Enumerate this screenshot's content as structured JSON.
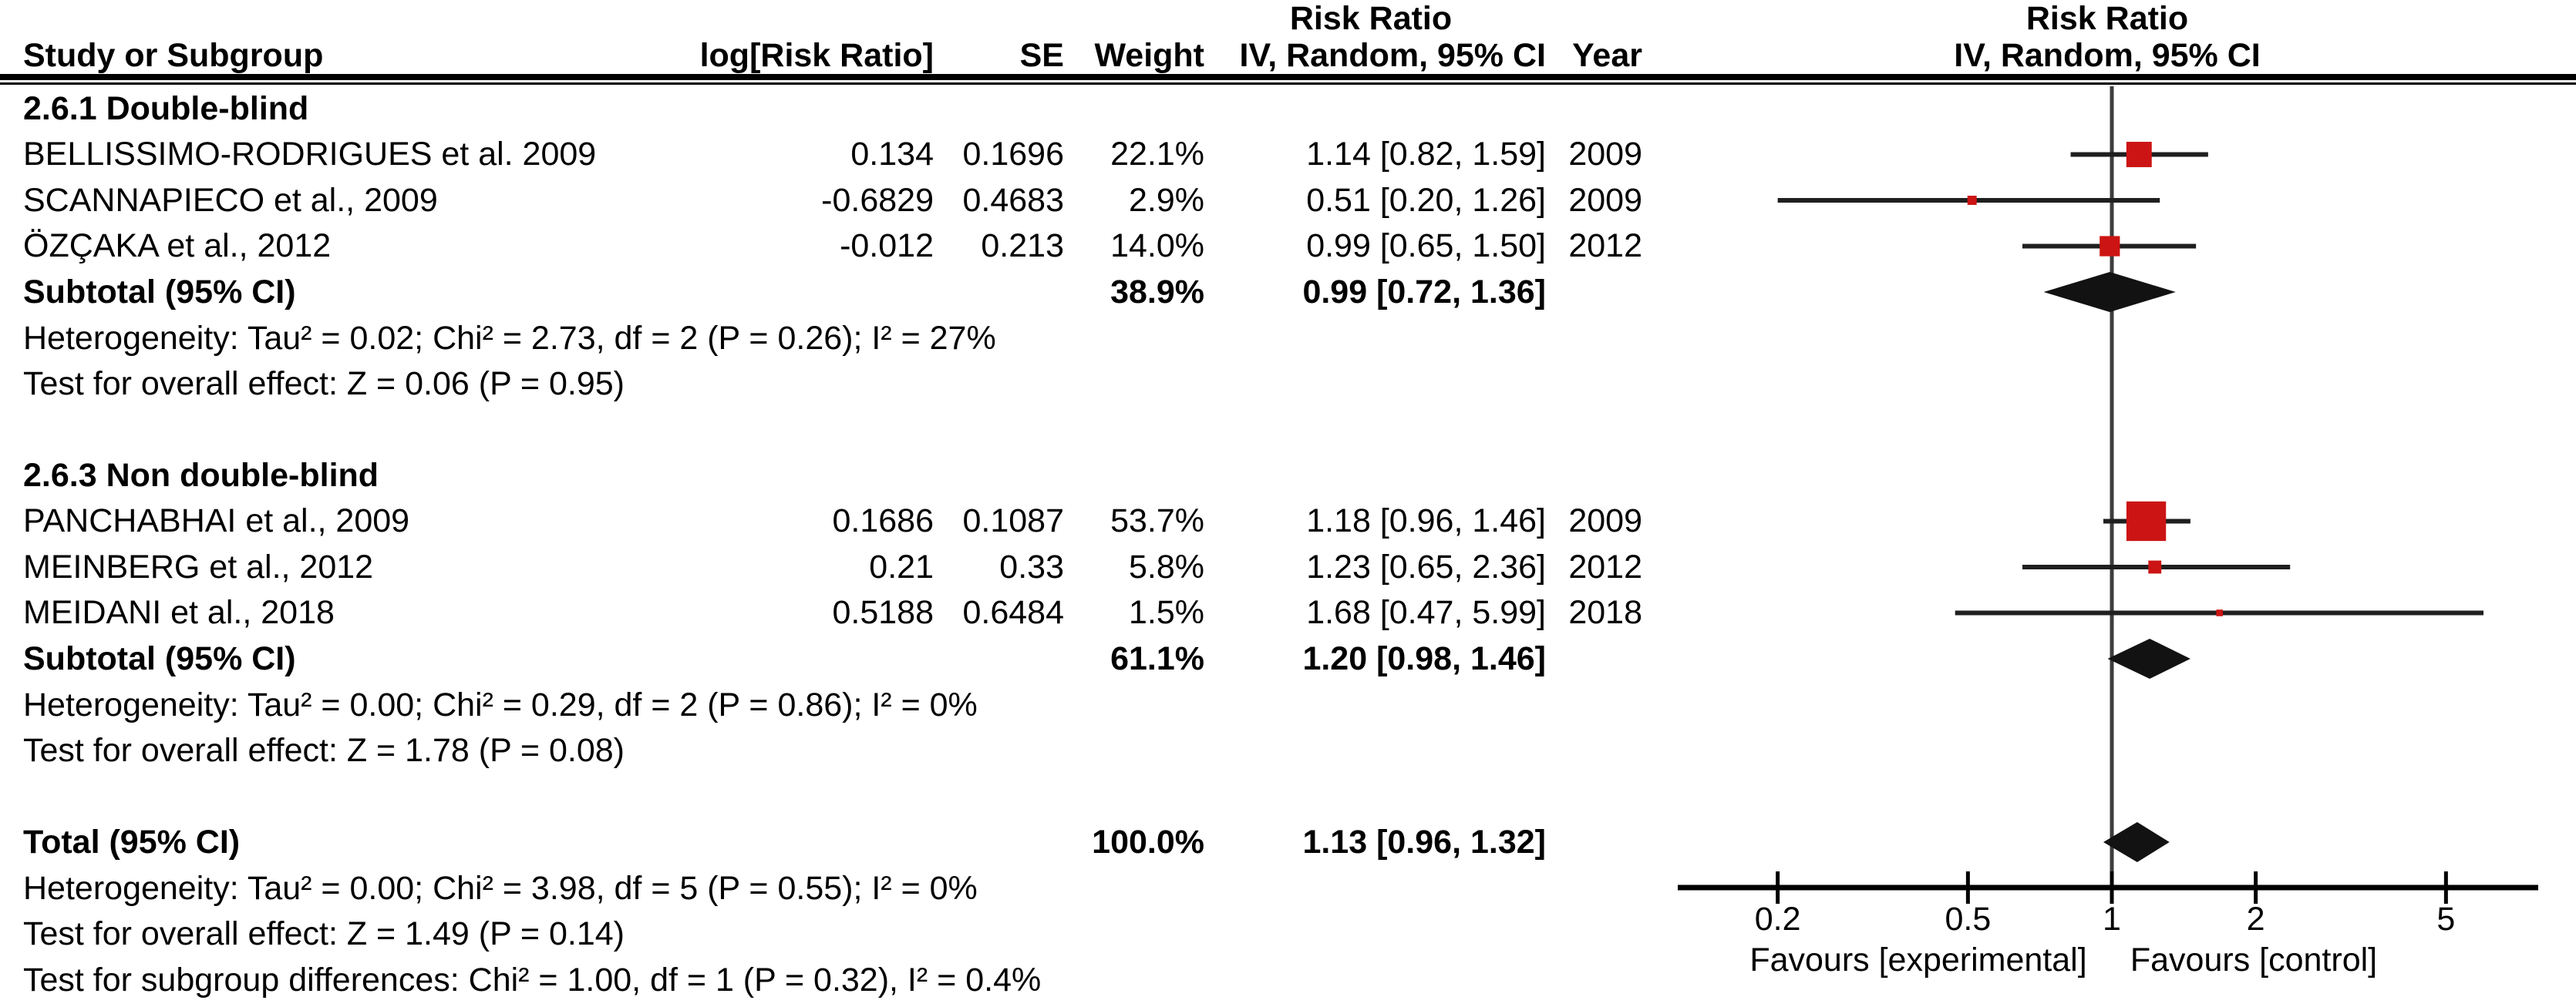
{
  "header": {
    "risk_ratio_left": "Risk Ratio",
    "risk_ratio_right": "Risk Ratio",
    "col_study": "Study or Subgroup",
    "col_log_rr": "log[Risk Ratio]",
    "col_se": "SE",
    "col_weight": "Weight",
    "col_effect": "IV, Random, 95% CI",
    "col_year": "Year",
    "plot_effect": "IV, Random, 95% CI"
  },
  "chart_data": {
    "type": "forest",
    "effect_measure": "Risk Ratio",
    "model": "IV, Random, 95% CI",
    "x_scale": "log",
    "x_ticks": [
      "0.2",
      "0.5",
      "1",
      "2",
      "5"
    ],
    "x_tick_values": [
      0.2,
      0.5,
      1,
      2,
      5
    ],
    "favours_left": "Favours [experimental]",
    "favours_right": "Favours [control]",
    "marker_color": "#cc1414",
    "diamond_color": "#121212",
    "rows": [
      {
        "type": "group",
        "label": "2.6.1 Double-blind"
      },
      {
        "type": "study",
        "study": "BELLISSIMO-RODRIGUES et al. 2009",
        "log_rr": "0.134",
        "se": "0.1696",
        "weight": "22.1%",
        "weight_val": 22.1,
        "ci_text": "1.14 [0.82, 1.59]",
        "year": "2009",
        "rr": 1.14,
        "lo": 0.82,
        "hi": 1.59
      },
      {
        "type": "study",
        "study": "SCANNAPIECO et al., 2009",
        "log_rr": "-0.6829",
        "se": "0.4683",
        "weight": "2.9%",
        "weight_val": 2.9,
        "ci_text": "0.51 [0.20, 1.26]",
        "year": "2009",
        "rr": 0.51,
        "lo": 0.2,
        "hi": 1.26
      },
      {
        "type": "study",
        "study": "ÖZÇAKA et al., 2012",
        "log_rr": "-0.012",
        "se": "0.213",
        "weight": "14.0%",
        "weight_val": 14.0,
        "ci_text": "0.99 [0.65, 1.50]",
        "year": "2012",
        "rr": 0.99,
        "lo": 0.65,
        "hi": 1.5
      },
      {
        "type": "subtotal",
        "label": "Subtotal (95% CI)",
        "weight": "38.9%",
        "ci_text": "0.99 [0.72, 1.36]",
        "rr": 0.99,
        "lo": 0.72,
        "hi": 1.36
      },
      {
        "type": "note",
        "label": "Heterogeneity: Tau² = 0.02; Chi² = 2.73, df = 2 (P = 0.26); I² = 27%"
      },
      {
        "type": "note",
        "label": "Test for overall effect: Z = 0.06 (P = 0.95)"
      },
      {
        "type": "spacer"
      },
      {
        "type": "group",
        "label": "2.6.3 Non double-blind"
      },
      {
        "type": "study",
        "study": "PANCHABHAI et al., 2009",
        "log_rr": "0.1686",
        "se": "0.1087",
        "weight": "53.7%",
        "weight_val": 53.7,
        "ci_text": "1.18 [0.96, 1.46]",
        "year": "2009",
        "rr": 1.18,
        "lo": 0.96,
        "hi": 1.46
      },
      {
        "type": "study",
        "study": "MEINBERG et al., 2012",
        "log_rr": "0.21",
        "se": "0.33",
        "weight": "5.8%",
        "weight_val": 5.8,
        "ci_text": "1.23 [0.65, 2.36]",
        "year": "2012",
        "rr": 1.23,
        "lo": 0.65,
        "hi": 2.36
      },
      {
        "type": "study",
        "study": "MEIDANI et al., 2018",
        "log_rr": "0.5188",
        "se": "0.6484",
        "weight": "1.5%",
        "weight_val": 1.5,
        "ci_text": "1.68 [0.47, 5.99]",
        "year": "2018",
        "rr": 1.68,
        "lo": 0.47,
        "hi": 5.99
      },
      {
        "type": "subtotal",
        "label": "Subtotal (95% CI)",
        "weight": "61.1%",
        "ci_text": "1.20 [0.98, 1.46]",
        "rr": 1.2,
        "lo": 0.98,
        "hi": 1.46
      },
      {
        "type": "note",
        "label": "Heterogeneity: Tau² = 0.00; Chi² = 0.29, df = 2 (P = 0.86); I² = 0%"
      },
      {
        "type": "note",
        "label": "Test for overall effect: Z = 1.78 (P = 0.08)"
      },
      {
        "type": "spacer"
      },
      {
        "type": "total",
        "label": "Total (95% CI)",
        "weight": "100.0%",
        "ci_text": "1.13 [0.96, 1.32]",
        "rr": 1.13,
        "lo": 0.96,
        "hi": 1.32
      },
      {
        "type": "note",
        "label": "Heterogeneity: Tau² = 0.00; Chi² = 3.98, df = 5 (P = 0.55); I² = 0%"
      },
      {
        "type": "note",
        "label": "Test for overall effect: Z = 1.49 (P = 0.14)"
      },
      {
        "type": "note",
        "label": "Test for subgroup differences: Chi² = 1.00, df = 1 (P = 0.32), I² = 0.4%"
      }
    ]
  }
}
